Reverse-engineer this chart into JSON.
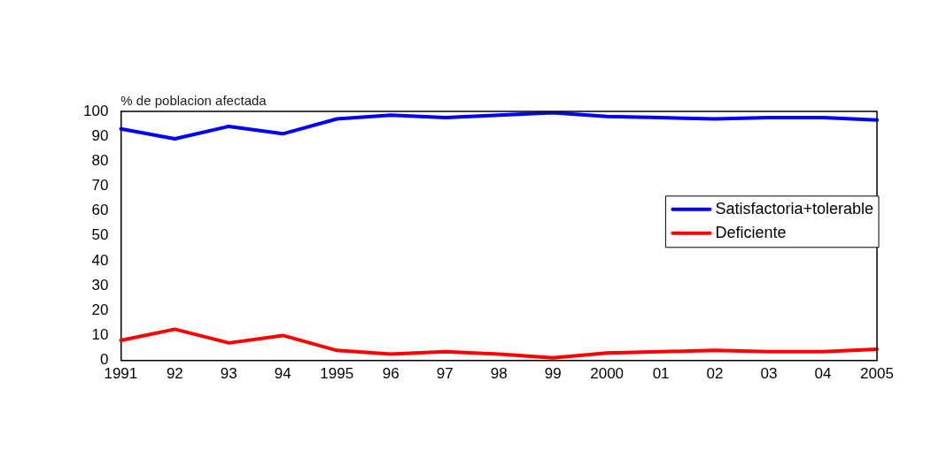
{
  "chart_data": {
    "type": "line",
    "ylabel": "% de poblacion afectada",
    "categories": [
      "1991",
      "92",
      "93",
      "94",
      "1995",
      "96",
      "97",
      "98",
      "99",
      "2000",
      "01",
      "02",
      "03",
      "04",
      "2005"
    ],
    "series": [
      {
        "name": "Satisfactoria+tolerable",
        "color": "#0000ff",
        "values": [
          93,
          89,
          94,
          91,
          97,
          98.5,
          97.5,
          98.5,
          99.5,
          98,
          97.5,
          97,
          97.5,
          97.5,
          96.5
        ]
      },
      {
        "name": "Deficiente",
        "color": "#ff0000",
        "values": [
          8,
          12.5,
          7,
          10,
          4,
          2.5,
          3.5,
          2.5,
          1,
          3,
          3.5,
          4,
          3.5,
          3.5,
          4.5
        ]
      }
    ],
    "ylim": [
      0,
      100
    ],
    "yticks": [
      0,
      10,
      20,
      30,
      40,
      50,
      60,
      70,
      80,
      90,
      100
    ],
    "grid": false,
    "legend": "right",
    "marker": "none",
    "line_style": "solid"
  }
}
